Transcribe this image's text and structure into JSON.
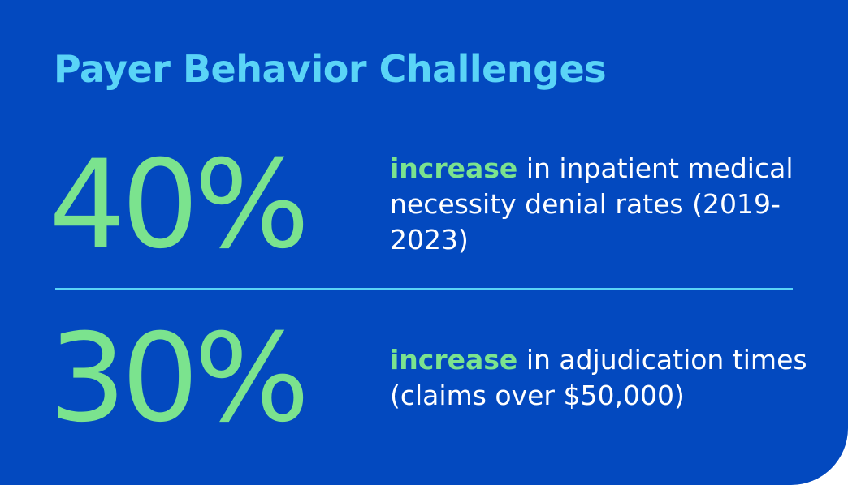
{
  "title": "Payer Behavior Challenges",
  "stats": [
    {
      "value": "40%",
      "highlight": "increase",
      "description": " in inpatient medical necessity denial rates (2019-2023)"
    },
    {
      "value": "30%",
      "highlight": "increase",
      "description": " in adjudication times (claims over $50,000)"
    }
  ],
  "colors": {
    "background": "#0349bf",
    "title": "#5ad4f7",
    "accent": "#7be38e",
    "divider": "#5ad4f7",
    "text": "#ffffff"
  }
}
